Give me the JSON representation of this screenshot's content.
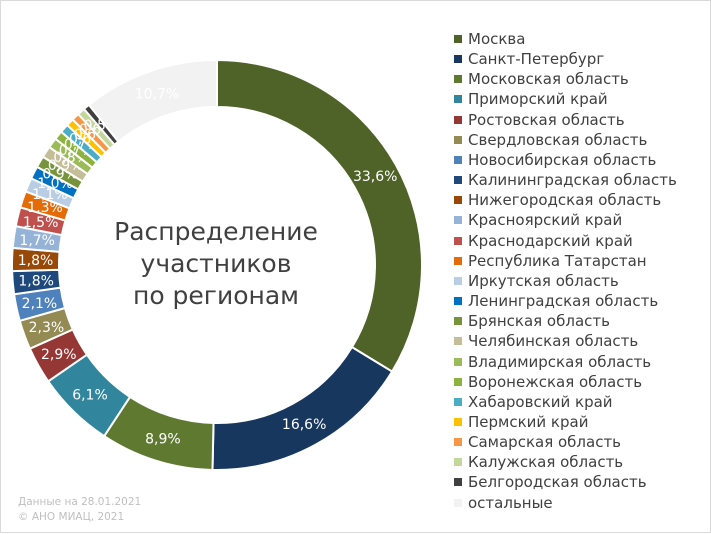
{
  "chart_data": {
    "type": "pie",
    "title": "Распределение участников по регионам",
    "title_lines": [
      "Распределение",
      "участников",
      "по регионам"
    ],
    "legend_position": "right",
    "slices": [
      {
        "name": "Москва",
        "value": 33.6,
        "label": "33,6%",
        "color": "#4f6228"
      },
      {
        "name": "Санкт-Петербург",
        "value": 16.6,
        "label": "16,6%",
        "color": "#17375e"
      },
      {
        "name": "Московская область",
        "value": 8.9,
        "label": "8,9%",
        "color": "#5f7a30"
      },
      {
        "name": "Приморский край",
        "value": 6.1,
        "label": "6,1%",
        "color": "#31859c"
      },
      {
        "name": "Ростовская область",
        "value": 2.9,
        "label": "2,9%",
        "color": "#953735"
      },
      {
        "name": "Свердловская область",
        "value": 2.3,
        "label": "2,3%",
        "color": "#948a54"
      },
      {
        "name": "Новосибирская область",
        "value": 2.1,
        "label": "2,1%",
        "color": "#4f81bd"
      },
      {
        "name": "Калининградская область",
        "value": 1.8,
        "label": "1,8%",
        "color": "#1f497d"
      },
      {
        "name": "Нижегородская область",
        "value": 1.8,
        "label": "1,8%",
        "color": "#984807"
      },
      {
        "name": "Красноярский край",
        "value": 1.7,
        "label": "1,7%",
        "color": "#95b3d7"
      },
      {
        "name": "Краснодарский край",
        "value": 1.5,
        "label": "1,5%",
        "color": "#c0504d"
      },
      {
        "name": "Республика Татарстан",
        "value": 1.3,
        "label": "1,3%",
        "color": "#e36c09"
      },
      {
        "name": "Иркутская область",
        "value": 1.1,
        "label": "1,1%",
        "color": "#b9cde5"
      },
      {
        "name": "Ленинградская область",
        "value": 1.0,
        "label": "1,0%",
        "color": "#0070c0"
      },
      {
        "name": "Брянская область",
        "value": 0.9,
        "label": "0,9%",
        "color": "#77933c"
      },
      {
        "name": "Челябинская область",
        "value": 0.9,
        "label": "0,9%",
        "color": "#c4bd97"
      },
      {
        "name": "Владимирская область",
        "value": 0.8,
        "label": "0,8%",
        "color": "#9bbb59"
      },
      {
        "name": "Воронежская область",
        "value": 0.7,
        "label": "0,7%",
        "color": "#8db33f"
      },
      {
        "name": "Хабаровский край",
        "value": 0.7,
        "label": "0,7%",
        "color": "#4bacc6"
      },
      {
        "name": "Пермский край",
        "value": 0.6,
        "label": "0,6%",
        "color": "#ffc000"
      },
      {
        "name": "Самарская область",
        "value": 0.6,
        "label": "0,6%",
        "color": "#f79646"
      },
      {
        "name": "Калужская область",
        "value": 0.6,
        "label": "0,6%",
        "color": "#c3d69b"
      },
      {
        "name": "Белгородская область",
        "value": 0.5,
        "label": "0,5%",
        "color": "#3f3f3f"
      },
      {
        "name": "остальные",
        "value": 10.7,
        "label": "10,7%",
        "color": "#f2f2f2"
      }
    ]
  },
  "footer": {
    "date_line": "Данные на 28.01.2021",
    "copyright_line": "© АНО МИАЦ, 2021"
  }
}
